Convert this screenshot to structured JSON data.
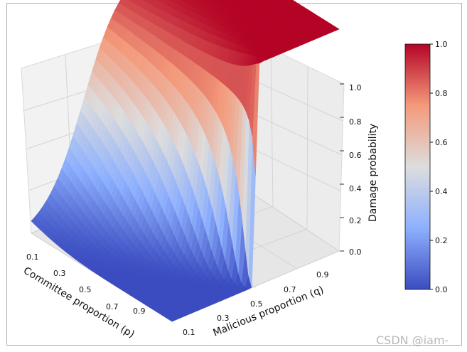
{
  "chart_data": {
    "type": "surface3d",
    "title": "",
    "xlabel": "Committee proportion (p)",
    "ylabel": "Malicious proportion (q)",
    "zlabel": "Damage probability",
    "x_ticks": [
      "0.1",
      "0.3",
      "0.5",
      "0.7",
      "0.9"
    ],
    "y_ticks": [
      "0.1",
      "0.3",
      "0.5",
      "0.7",
      "0.9"
    ],
    "z_ticks": [
      "0.0",
      "0.2",
      "0.4",
      "0.6",
      "0.8",
      "1.0"
    ],
    "xlim": [
      0.1,
      0.9
    ],
    "ylim": [
      0.1,
      0.9
    ],
    "zlim": [
      0.0,
      1.0
    ],
    "surface": {
      "description": "Damage probability rises from 0 to 1 as malicious proportion q increases; transition steepens and shifts right with larger committee proportion p",
      "q_threshold_low_p": 0.35,
      "q_threshold_high_p": 0.5,
      "plateau_value": 1.0
    },
    "colormap": "coolwarm",
    "colorbar": {
      "min": 0.0,
      "max": 1.0,
      "ticks": [
        "0.0",
        "0.2",
        "0.4",
        "0.6",
        "0.8",
        "1.0"
      ]
    }
  },
  "watermark": "CSDN @iam-"
}
